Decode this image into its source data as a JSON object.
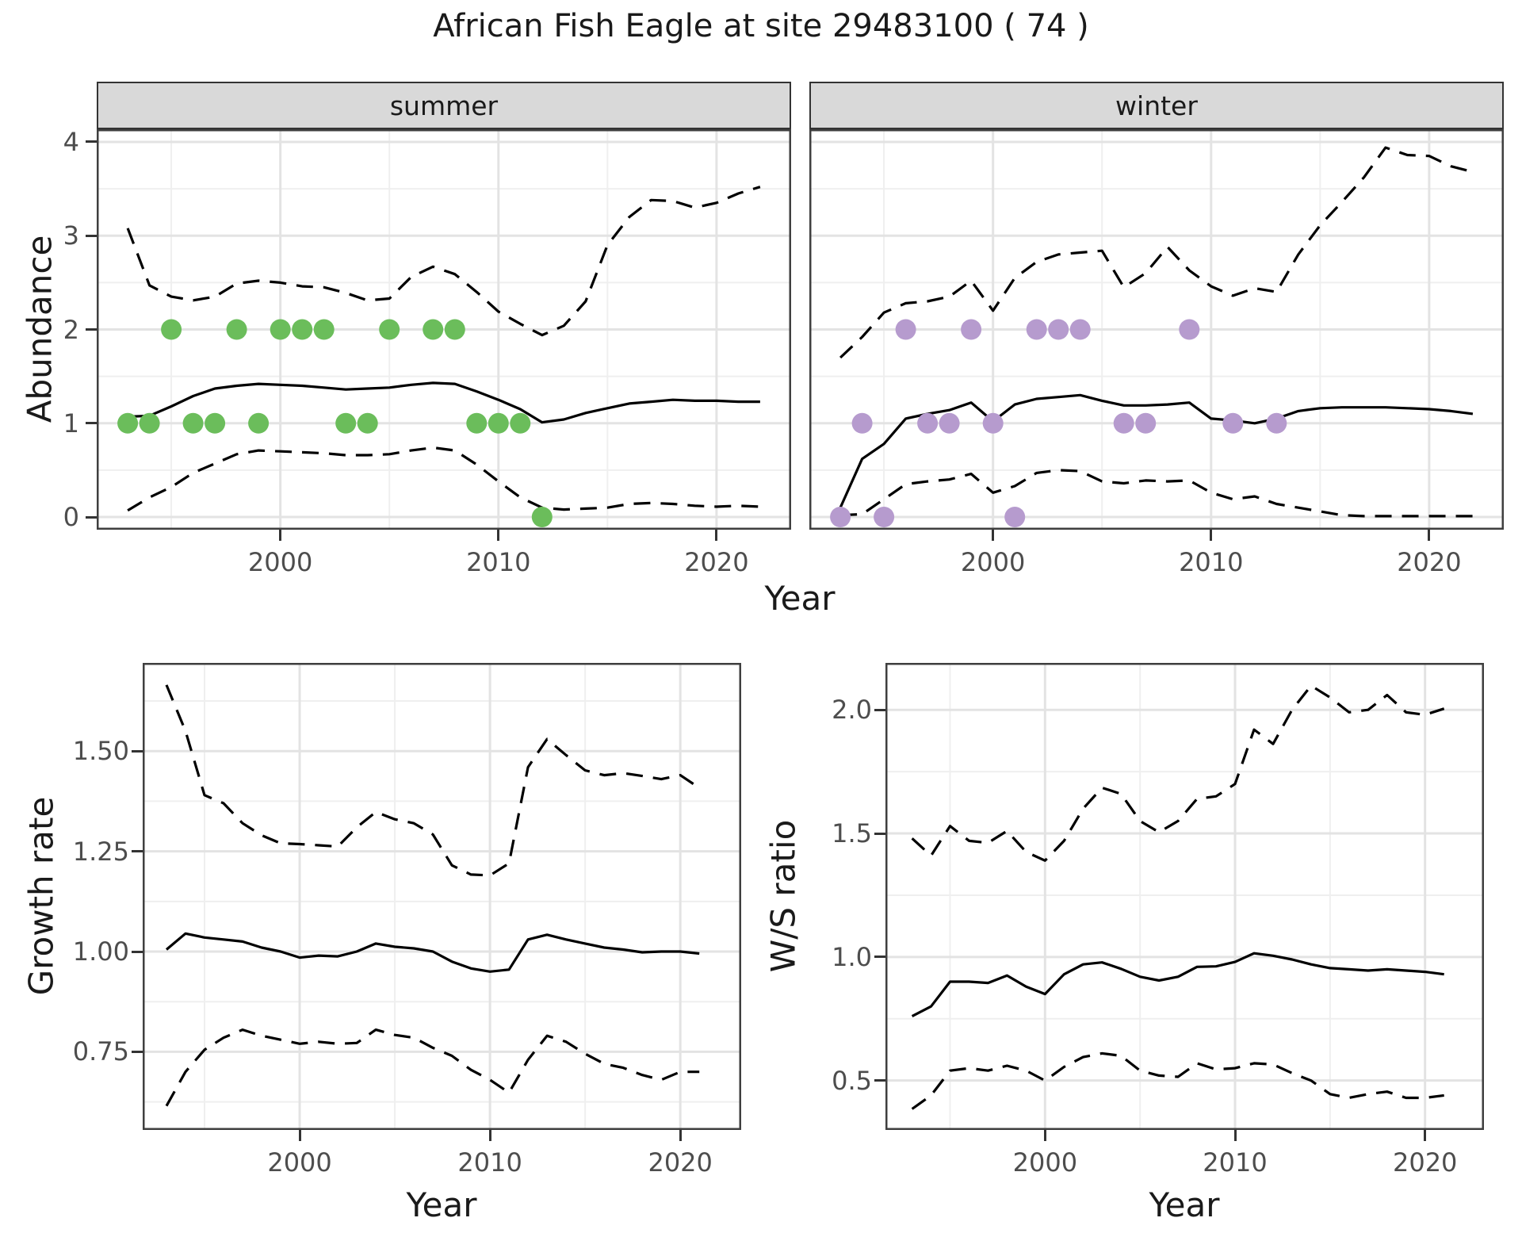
{
  "title": "African Fish Eagle at site 29483100 ( 74 )",
  "facets": [
    "summer",
    "winter"
  ],
  "labels": {
    "year": "Year",
    "abundance": "Abundance",
    "growth_rate": "Growth rate",
    "ws_ratio": "W/S ratio"
  },
  "colors": {
    "point_summer": "#6bbd5b",
    "point_winter": "#b69bce",
    "line": "#000000",
    "grid_major": "#e3e3e3",
    "grid_minor": "#efefef",
    "panel_border": "#3f3f3f",
    "strip_bg": "#d9d9d9",
    "tick_text": "#4d4d4d",
    "text": "#1a1a1a"
  },
  "chart_data": [
    {
      "id": "abundance-summer",
      "type": "line",
      "facet": "summer",
      "xlabel": "Year",
      "ylabel": "Abundance",
      "xlim": [
        1991.58,
        2023.42
      ],
      "ylim": [
        -0.135,
        4.135
      ],
      "x_ticks": [
        2000,
        2010,
        2020
      ],
      "x_tick_labels": [
        "2000",
        "2010",
        "2020"
      ],
      "x_minor": [
        1995,
        2005,
        2015
      ],
      "y_ticks": [
        0,
        1,
        2,
        3,
        4
      ],
      "y_tick_labels": [
        "0",
        "1",
        "2",
        "3",
        "4"
      ],
      "y_minor": [
        0.5,
        1.5,
        2.5,
        3.5
      ],
      "x": [
        1993,
        1994,
        1995,
        1996,
        1997,
        1998,
        1999,
        2000,
        2001,
        2002,
        2003,
        2004,
        2005,
        2006,
        2007,
        2008,
        2009,
        2010,
        2011,
        2012,
        2013,
        2014,
        2015,
        2016,
        2017,
        2018,
        2019,
        2020,
        2021,
        2022
      ],
      "series": [
        {
          "name": "fitted abundance",
          "style": "solid",
          "values": [
            1.07,
            1.08,
            1.18,
            1.29,
            1.37,
            1.4,
            1.42,
            1.41,
            1.4,
            1.38,
            1.36,
            1.37,
            1.38,
            1.41,
            1.43,
            1.42,
            1.34,
            1.25,
            1.15,
            1.01,
            1.04,
            1.11,
            1.16,
            1.21,
            1.23,
            1.25,
            1.24,
            1.24,
            1.23,
            1.23
          ]
        },
        {
          "name": "upper confidence limit",
          "style": "dashed",
          "values": [
            3.08,
            2.47,
            2.35,
            2.31,
            2.35,
            2.49,
            2.52,
            2.5,
            2.46,
            2.45,
            2.39,
            2.31,
            2.33,
            2.56,
            2.67,
            2.59,
            2.4,
            2.19,
            2.06,
            1.94,
            2.04,
            2.3,
            2.9,
            3.2,
            3.38,
            3.37,
            3.3,
            3.35,
            3.45,
            3.52
          ]
        },
        {
          "name": "lower confidence limit",
          "style": "dashed",
          "values": [
            0.07,
            0.21,
            0.32,
            0.47,
            0.57,
            0.67,
            0.71,
            0.7,
            0.69,
            0.68,
            0.66,
            0.66,
            0.67,
            0.71,
            0.74,
            0.71,
            0.56,
            0.38,
            0.21,
            0.1,
            0.08,
            0.09,
            0.1,
            0.14,
            0.15,
            0.14,
            0.12,
            0.11,
            0.12,
            0.11
          ]
        }
      ],
      "points": [
        [
          1993,
          1
        ],
        [
          1994,
          1
        ],
        [
          1995,
          2
        ],
        [
          1996,
          1
        ],
        [
          1997,
          1
        ],
        [
          1998,
          2
        ],
        [
          1999,
          1
        ],
        [
          2000,
          2
        ],
        [
          2001,
          2
        ],
        [
          2002,
          2
        ],
        [
          2003,
          1
        ],
        [
          2004,
          1
        ],
        [
          2005,
          2
        ],
        [
          2007,
          2
        ],
        [
          2008,
          2
        ],
        [
          2009,
          1
        ],
        [
          2010,
          1
        ],
        [
          2011,
          1
        ],
        [
          2012,
          0
        ]
      ],
      "point_color": "#6bbd5b"
    },
    {
      "id": "abundance-winter",
      "type": "line",
      "facet": "winter",
      "xlabel": "Year",
      "ylabel": "Abundance",
      "xlim": [
        1991.58,
        2023.42
      ],
      "ylim": [
        -0.135,
        4.135
      ],
      "x_ticks": [
        2000,
        2010,
        2020
      ],
      "x_tick_labels": [
        "2000",
        "2010",
        "2020"
      ],
      "x_minor": [
        1995,
        2005,
        2015
      ],
      "y_ticks": [
        0,
        1,
        2,
        3,
        4
      ],
      "y_tick_labels": [
        "0",
        "1",
        "2",
        "3",
        "4"
      ],
      "y_minor": [
        0.5,
        1.5,
        2.5,
        3.5
      ],
      "x": [
        1993,
        1994,
        1995,
        1996,
        1997,
        1998,
        1999,
        2000,
        2001,
        2002,
        2003,
        2004,
        2005,
        2006,
        2007,
        2008,
        2009,
        2010,
        2011,
        2012,
        2013,
        2014,
        2015,
        2016,
        2017,
        2018,
        2019,
        2020,
        2021,
        2022
      ],
      "series": [
        {
          "name": "fitted abundance",
          "style": "solid",
          "values": [
            0.1,
            0.62,
            0.78,
            1.05,
            1.1,
            1.14,
            1.22,
            1.02,
            1.2,
            1.26,
            1.28,
            1.3,
            1.24,
            1.19,
            1.19,
            1.2,
            1.22,
            1.05,
            1.03,
            1.0,
            1.05,
            1.13,
            1.16,
            1.17,
            1.17,
            1.17,
            1.16,
            1.15,
            1.13,
            1.1
          ]
        },
        {
          "name": "upper confidence limit",
          "style": "dashed",
          "values": [
            1.7,
            1.92,
            2.18,
            2.28,
            2.3,
            2.35,
            2.52,
            2.2,
            2.55,
            2.72,
            2.8,
            2.82,
            2.84,
            2.45,
            2.6,
            2.88,
            2.63,
            2.46,
            2.36,
            2.44,
            2.4,
            2.8,
            3.11,
            3.36,
            3.62,
            3.94,
            3.86,
            3.85,
            3.74,
            3.68
          ]
        },
        {
          "name": "lower confidence limit",
          "style": "dashed",
          "values": [
            0.02,
            0.03,
            0.19,
            0.35,
            0.38,
            0.4,
            0.46,
            0.26,
            0.33,
            0.47,
            0.5,
            0.49,
            0.38,
            0.36,
            0.39,
            0.38,
            0.39,
            0.26,
            0.19,
            0.22,
            0.14,
            0.1,
            0.06,
            0.02,
            0.01,
            0.01,
            0.01,
            0.01,
            0.01,
            0.01
          ]
        }
      ],
      "points": [
        [
          1993,
          0
        ],
        [
          1994,
          1
        ],
        [
          1995,
          0
        ],
        [
          1996,
          2
        ],
        [
          1997,
          1
        ],
        [
          1998,
          1
        ],
        [
          1999,
          2
        ],
        [
          2000,
          1
        ],
        [
          2001,
          0
        ],
        [
          2002,
          2
        ],
        [
          2003,
          2
        ],
        [
          2004,
          2
        ],
        [
          2006,
          1
        ],
        [
          2007,
          1
        ],
        [
          2009,
          2
        ],
        [
          2011,
          1
        ],
        [
          2013,
          1
        ]
      ],
      "point_color": "#b69bce"
    },
    {
      "id": "growth-rate",
      "type": "line",
      "xlabel": "Year",
      "ylabel": "Growth rate",
      "xlim": [
        1991.75,
        2023.2
      ],
      "ylim": [
        0.555,
        1.72
      ],
      "x_ticks": [
        2000,
        2010,
        2020
      ],
      "x_tick_labels": [
        "2000",
        "2010",
        "2020"
      ],
      "x_minor": [
        1995,
        2005,
        2015
      ],
      "y_ticks": [
        0.75,
        1.0,
        1.25,
        1.5
      ],
      "y_tick_labels": [
        "0.75",
        "1.00",
        "1.25",
        "1.50"
      ],
      "y_minor": [
        0.625,
        0.875,
        1.125,
        1.375,
        1.625
      ],
      "x": [
        1993,
        1994,
        1995,
        1996,
        1997,
        1998,
        1999,
        2000,
        2001,
        2002,
        2003,
        2004,
        2005,
        2006,
        2007,
        2008,
        2009,
        2010,
        2011,
        2012,
        2013,
        2014,
        2015,
        2016,
        2017,
        2018,
        2019,
        2020,
        2021
      ],
      "series": [
        {
          "name": "growth rate",
          "style": "solid",
          "values": [
            1.005,
            1.045,
            1.035,
            1.03,
            1.025,
            1.01,
            1.0,
            0.985,
            0.99,
            0.988,
            1.0,
            1.02,
            1.012,
            1.008,
            1.0,
            0.975,
            0.958,
            0.95,
            0.955,
            1.03,
            1.042,
            1.03,
            1.02,
            1.01,
            1.005,
            0.998,
            1.0,
            1.0,
            0.995
          ]
        },
        {
          "name": "upper confidence limit",
          "style": "dashed",
          "values": [
            1.665,
            1.55,
            1.39,
            1.37,
            1.32,
            1.29,
            1.27,
            1.268,
            1.265,
            1.262,
            1.31,
            1.348,
            1.33,
            1.32,
            1.292,
            1.215,
            1.192,
            1.19,
            1.22,
            1.46,
            1.53,
            1.49,
            1.452,
            1.44,
            1.445,
            1.438,
            1.43,
            1.44,
            1.408
          ]
        },
        {
          "name": "lower confidence limit",
          "style": "dashed",
          "values": [
            0.615,
            0.7,
            0.755,
            0.785,
            0.805,
            0.79,
            0.78,
            0.77,
            0.775,
            0.77,
            0.772,
            0.805,
            0.792,
            0.785,
            0.76,
            0.74,
            0.705,
            0.68,
            0.648,
            0.73,
            0.79,
            0.775,
            0.745,
            0.72,
            0.71,
            0.692,
            0.68,
            0.7,
            0.7
          ]
        }
      ],
      "points": [],
      "point_color": "#000000"
    },
    {
      "id": "ws-ratio",
      "type": "line",
      "xlabel": "Year",
      "ylabel": "W/S ratio",
      "xlim": [
        1991.6,
        2023.1
      ],
      "ylim": [
        0.3,
        2.19
      ],
      "x_ticks": [
        2000,
        2010,
        2020
      ],
      "x_tick_labels": [
        "2000",
        "2010",
        "2020"
      ],
      "x_minor": [
        1995,
        2005,
        2015
      ],
      "y_ticks": [
        0.5,
        1.0,
        1.5,
        2.0
      ],
      "y_tick_labels": [
        "0.5",
        "1.0",
        "1.5",
        "2.0"
      ],
      "y_minor": [
        0.75,
        1.25,
        1.75
      ],
      "x": [
        1993,
        1994,
        1995,
        1996,
        1997,
        1998,
        1999,
        2000,
        2001,
        2002,
        2003,
        2004,
        2005,
        2006,
        2007,
        2008,
        2009,
        2010,
        2011,
        2012,
        2013,
        2014,
        2015,
        2016,
        2017,
        2018,
        2019,
        2020,
        2021
      ],
      "series": [
        {
          "name": "winter/summer ratio",
          "style": "solid",
          "values": [
            0.76,
            0.8,
            0.9,
            0.9,
            0.895,
            0.925,
            0.88,
            0.85,
            0.93,
            0.97,
            0.978,
            0.952,
            0.92,
            0.905,
            0.92,
            0.96,
            0.962,
            0.98,
            1.015,
            1.005,
            0.99,
            0.97,
            0.955,
            0.95,
            0.945,
            0.95,
            0.945,
            0.94,
            0.93
          ]
        },
        {
          "name": "upper confidence limit",
          "style": "dashed",
          "values": [
            1.48,
            1.41,
            1.53,
            1.47,
            1.462,
            1.51,
            1.425,
            1.39,
            1.47,
            1.6,
            1.685,
            1.66,
            1.55,
            1.505,
            1.55,
            1.64,
            1.65,
            1.7,
            1.92,
            1.862,
            2.0,
            2.098,
            2.05,
            1.99,
            2.0,
            2.06,
            1.99,
            1.98,
            2.005
          ]
        },
        {
          "name": "lower confidence limit",
          "style": "dashed",
          "values": [
            0.385,
            0.44,
            0.54,
            0.55,
            0.54,
            0.56,
            0.54,
            0.5,
            0.555,
            0.595,
            0.61,
            0.6,
            0.54,
            0.52,
            0.515,
            0.57,
            0.545,
            0.55,
            0.57,
            0.565,
            0.53,
            0.5,
            0.445,
            0.43,
            0.445,
            0.455,
            0.43,
            0.43,
            0.44
          ]
        }
      ],
      "points": [],
      "point_color": "#000000"
    }
  ]
}
